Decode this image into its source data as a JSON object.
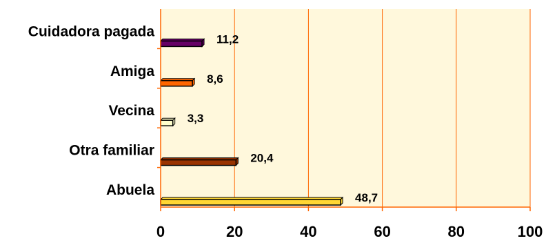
{
  "chart_data": {
    "type": "bar",
    "orientation": "horizontal",
    "categories": [
      "Abuela",
      "Otra familiar",
      "Vecina",
      "Amiga",
      "Cuidadora pagada"
    ],
    "values": [
      48.7,
      20.4,
      3.3,
      8.6,
      11.2
    ],
    "value_labels": [
      "48,7",
      "20,4",
      "3,3",
      "8,6",
      "11,2"
    ],
    "bar_colors": [
      "#ffd633",
      "#993300",
      "#ffffcc",
      "#ff6600",
      "#660066"
    ],
    "xlim": [
      0,
      100
    ],
    "x_ticks": [
      0,
      20,
      40,
      60,
      80,
      100
    ],
    "x_tick_labels": [
      "0",
      "20",
      "40",
      "60",
      "80",
      "100"
    ],
    "grid": true,
    "legend": "none",
    "title": "",
    "xlabel": "",
    "ylabel": "",
    "colors": {
      "plot_background": "#fff8dc",
      "axis_and_grid": "#ff6600",
      "bar_outline": "#000000"
    }
  }
}
